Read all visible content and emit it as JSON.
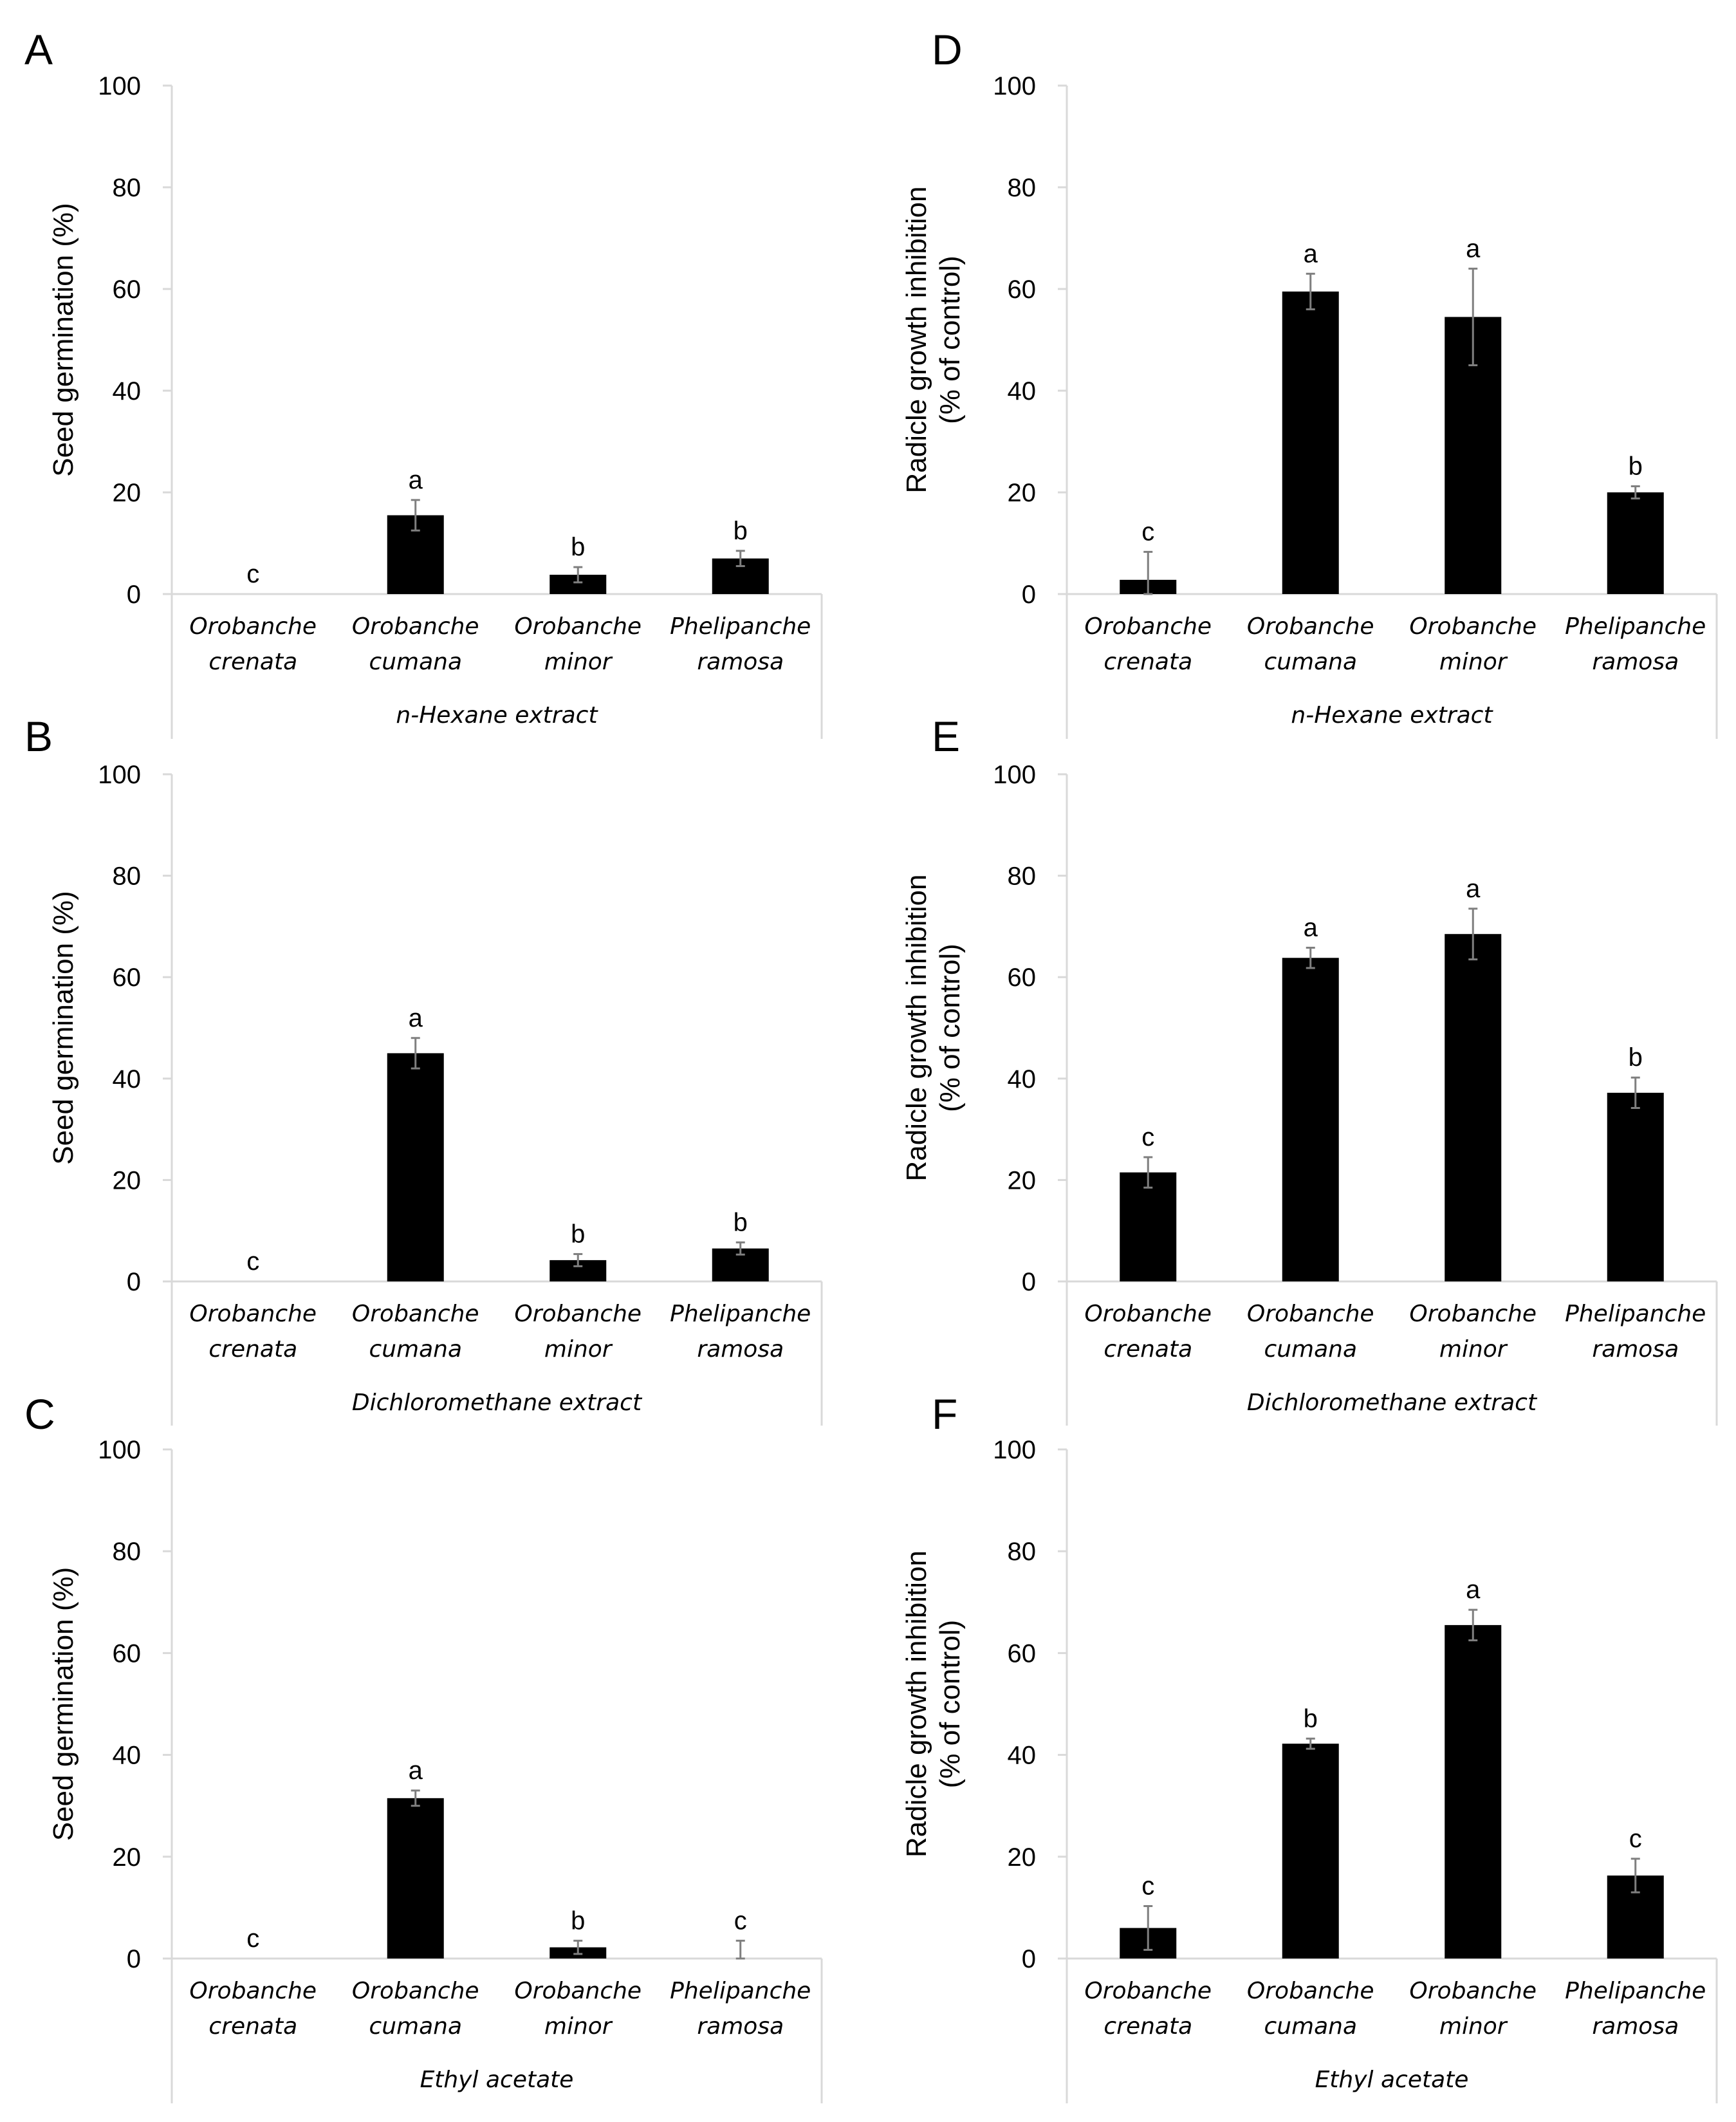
{
  "chart_data": [
    {
      "panel": "A",
      "type": "bar",
      "title": "",
      "ylabel_lines": [
        "Seed germination (%)"
      ],
      "xlabel": "n-Hexane extract",
      "categories": [
        [
          "Orobanche",
          "crenata"
        ],
        [
          "Orobanche",
          "cumana"
        ],
        [
          "Orobanche",
          "minor"
        ],
        [
          "Phelipanche",
          "ramosa"
        ]
      ],
      "values": [
        0,
        15.5,
        3.8,
        7.0
      ],
      "errors": [
        0,
        3.0,
        1.5,
        1.5
      ],
      "letters": [
        "c",
        "a",
        "b",
        "b"
      ],
      "ylim": [
        0,
        100
      ],
      "yticks": [
        "0",
        "20",
        "40",
        "60",
        "80",
        "100"
      ]
    },
    {
      "panel": "B",
      "type": "bar",
      "title": "",
      "ylabel_lines": [
        "Seed germination (%)"
      ],
      "xlabel": "Dichloromethane extract",
      "categories": [
        [
          "Orobanche",
          "crenata"
        ],
        [
          "Orobanche",
          "cumana"
        ],
        [
          "Orobanche",
          "minor"
        ],
        [
          "Phelipanche",
          "ramosa"
        ]
      ],
      "values": [
        0,
        45.0,
        4.2,
        6.5
      ],
      "errors": [
        0,
        3.0,
        1.2,
        1.2
      ],
      "letters": [
        "c",
        "a",
        "b",
        "b"
      ],
      "ylim": [
        0,
        100
      ],
      "yticks": [
        "0",
        "20",
        "40",
        "60",
        "80",
        "100"
      ]
    },
    {
      "panel": "C",
      "type": "bar",
      "title": "",
      "ylabel_lines": [
        "Seed germination (%)"
      ],
      "xlabel": "Ethyl acetate",
      "categories": [
        [
          "Orobanche",
          "crenata"
        ],
        [
          "Orobanche",
          "cumana"
        ],
        [
          "Orobanche",
          "minor"
        ],
        [
          "Phelipanche",
          "ramosa"
        ]
      ],
      "values": [
        0,
        31.5,
        2.2,
        0
      ],
      "errors": [
        0,
        1.5,
        1.3,
        3.5
      ],
      "letters": [
        "c",
        "a",
        "b",
        "c"
      ],
      "ylim": [
        0,
        100
      ],
      "yticks": [
        "0",
        "20",
        "40",
        "60",
        "80",
        "100"
      ]
    },
    {
      "panel": "D",
      "type": "bar",
      "title": "",
      "ylabel_lines": [
        "Radicle growth inhibition",
        "(% of control)"
      ],
      "xlabel": "n-Hexane extract",
      "categories": [
        [
          "Orobanche",
          "crenata"
        ],
        [
          "Orobanche",
          "cumana"
        ],
        [
          "Orobanche",
          "minor"
        ],
        [
          "Phelipanche",
          "ramosa"
        ]
      ],
      "values": [
        2.8,
        59.5,
        54.5,
        20.0
      ],
      "errors": [
        5.5,
        3.5,
        9.5,
        1.2
      ],
      "letters": [
        "c",
        "a",
        "a",
        "b"
      ],
      "ylim": [
        0,
        100
      ],
      "yticks": [
        "0",
        "20",
        "40",
        "60",
        "80",
        "100"
      ]
    },
    {
      "panel": "E",
      "type": "bar",
      "title": "",
      "ylabel_lines": [
        "Radicle growth inhibition",
        "(% of control)"
      ],
      "xlabel": "Dichloromethane extract",
      "categories": [
        [
          "Orobanche",
          "crenata"
        ],
        [
          "Orobanche",
          "cumana"
        ],
        [
          "Orobanche",
          "minor"
        ],
        [
          "Phelipanche",
          "ramosa"
        ]
      ],
      "values": [
        21.5,
        63.8,
        68.5,
        37.2
      ],
      "errors": [
        3.0,
        2.0,
        5.0,
        3.0
      ],
      "letters": [
        "c",
        "a",
        "a",
        "b"
      ],
      "ylim": [
        0,
        100
      ],
      "yticks": [
        "0",
        "20",
        "40",
        "60",
        "80",
        "100"
      ]
    },
    {
      "panel": "F",
      "type": "bar",
      "title": "",
      "ylabel_lines": [
        "Radicle growth inhibition",
        "(% of control)"
      ],
      "xlabel": "Ethyl acetate",
      "categories": [
        [
          "Orobanche",
          "crenata"
        ],
        [
          "Orobanche",
          "cumana"
        ],
        [
          "Orobanche",
          "minor"
        ],
        [
          "Phelipanche",
          "ramosa"
        ]
      ],
      "values": [
        6.0,
        42.2,
        65.5,
        16.3
      ],
      "errors": [
        4.3,
        1.0,
        3.0,
        3.3
      ],
      "letters": [
        "c",
        "b",
        "a",
        "c"
      ],
      "ylim": [
        0,
        100
      ],
      "yticks": [
        "0",
        "20",
        "40",
        "60",
        "80",
        "100"
      ]
    }
  ],
  "colors": {
    "bar": "#000000",
    "axis": "#d9d9d9",
    "error_bar": "#7f7f7f",
    "text": "#000000"
  }
}
